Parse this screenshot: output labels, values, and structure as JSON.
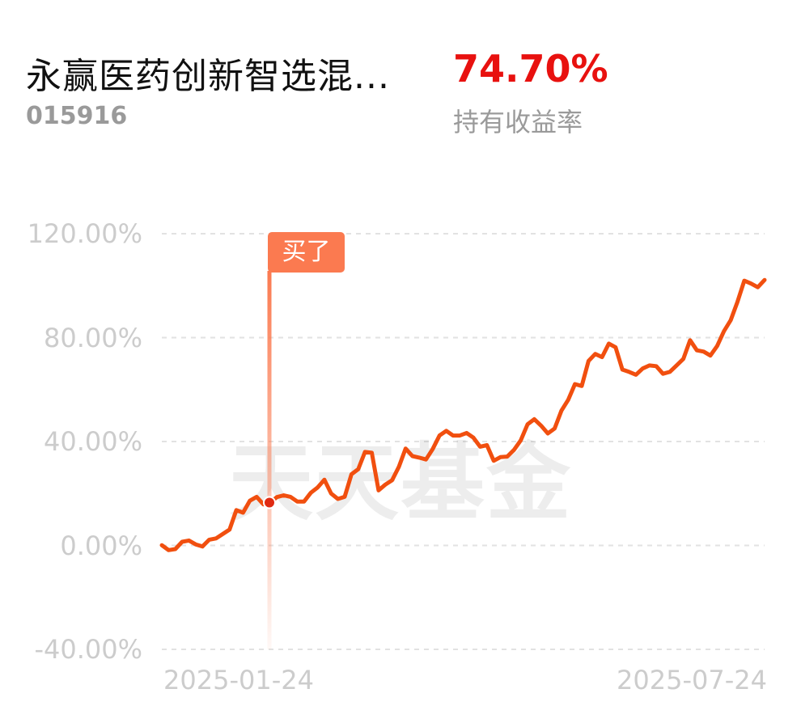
{
  "header": {
    "fund_name": "永赢医药创新智选混...",
    "fund_code": "015916",
    "return_value": "74.70%",
    "return_label": "持有收益率"
  },
  "watermark": "天天基金",
  "buy_marker": {
    "label": "买了",
    "date": "2025-01-24",
    "value": 16.5
  },
  "chart_data": {
    "type": "line",
    "title": "",
    "xlabel": "",
    "ylabel": "",
    "x_start": "2025-01-24",
    "x_end": "2025-07-24",
    "x_tick_labels": [
      "2025-01-24",
      "2025-07-24"
    ],
    "ylim": [
      -40,
      120
    ],
    "y_ticks": [
      120,
      80,
      40,
      0,
      -40
    ],
    "y_tick_labels": [
      "120.00%",
      "80.00%",
      "40.00%",
      "0.00%",
      "-40.00%"
    ],
    "grid": true,
    "series": [
      {
        "name": "",
        "color": "#f14f0f",
        "values": [
          0.1,
          -1.8,
          -1.4,
          1.4,
          1.9,
          0.4,
          -0.4,
          2.2,
          2.7,
          4.4,
          6.1,
          13.6,
          12.6,
          17.2,
          18.7,
          15.8,
          16.5,
          18.6,
          19.3,
          18.7,
          16.9,
          16.9,
          20.3,
          22.3,
          25.3,
          20.0,
          17.9,
          18.7,
          27.4,
          29.4,
          36.0,
          35.7,
          21.2,
          23.4,
          25.1,
          30.3,
          37.3,
          34.4,
          33.8,
          33.1,
          37.1,
          42.3,
          44.1,
          42.3,
          42.3,
          43.3,
          41.5,
          38.0,
          38.6,
          32.6,
          34.0,
          34.2,
          36.8,
          40.5,
          46.6,
          48.6,
          46.1,
          43.1,
          45.0,
          51.9,
          56.0,
          62.1,
          61.4,
          71.0,
          73.7,
          72.5,
          77.7,
          76.3,
          67.7,
          66.8,
          65.7,
          68.1,
          69.3,
          69.0,
          66.1,
          66.8,
          69.3,
          71.8,
          79.0,
          75.1,
          74.6,
          73.1,
          76.8,
          82.5,
          86.7,
          93.8,
          101.9,
          100.8,
          99.4,
          102.2
        ]
      }
    ]
  }
}
